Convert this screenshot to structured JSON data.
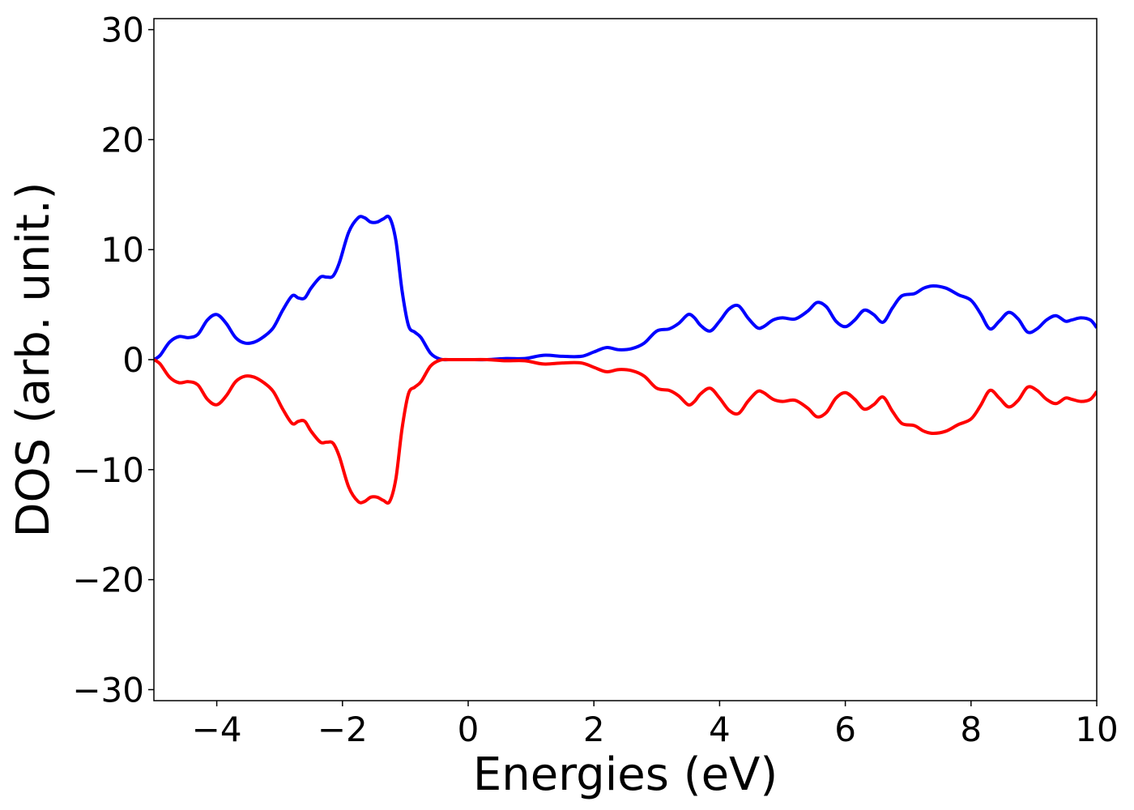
{
  "chart_data": {
    "type": "line",
    "xlabel": "Energies (eV)",
    "ylabel": "DOS (arb. unit.)",
    "xlim": [
      -5,
      10
    ],
    "ylim": [
      -31,
      31
    ],
    "x_ticks": [
      -4,
      -2,
      0,
      2,
      4,
      6,
      8,
      10
    ],
    "y_ticks": [
      -30,
      -20,
      -10,
      0,
      10,
      20,
      30
    ],
    "x_tick_labels": [
      "−4",
      "−2",
      "0",
      "2",
      "4",
      "6",
      "8",
      "10"
    ],
    "y_tick_labels": [
      "−30",
      "−20",
      "−10",
      "0",
      "10",
      "20",
      "30"
    ],
    "grid": false,
    "legend": "none",
    "series": [
      {
        "color": "#0000ff",
        "x": [
          -5.0,
          -4.9,
          -4.75,
          -4.6,
          -4.45,
          -4.3,
          -4.15,
          -4.0,
          -3.85,
          -3.7,
          -3.55,
          -3.4,
          -3.25,
          -3.1,
          -2.95,
          -2.8,
          -2.7,
          -2.6,
          -2.5,
          -2.35,
          -2.25,
          -2.15,
          -2.05,
          -1.9,
          -1.75,
          -1.65,
          -1.55,
          -1.45,
          -1.35,
          -1.25,
          -1.15,
          -1.05,
          -0.95,
          -0.85,
          -0.75,
          -0.6,
          -0.45,
          -0.3,
          0.0,
          0.3,
          0.6,
          0.9,
          1.2,
          1.5,
          1.8,
          2.0,
          2.2,
          2.4,
          2.6,
          2.8,
          3.0,
          3.2,
          3.35,
          3.5,
          3.6,
          3.7,
          3.85,
          4.0,
          4.15,
          4.3,
          4.45,
          4.6,
          4.7,
          4.85,
          5.0,
          5.2,
          5.4,
          5.55,
          5.7,
          5.85,
          6.0,
          6.15,
          6.3,
          6.45,
          6.6,
          6.75,
          6.9,
          7.1,
          7.25,
          7.4,
          7.6,
          7.8,
          8.0,
          8.15,
          8.3,
          8.45,
          8.6,
          8.75,
          8.9,
          9.05,
          9.2,
          9.35,
          9.5,
          9.6,
          9.75,
          9.9,
          10.0
        ],
        "values": [
          0.0,
          0.4,
          1.6,
          2.1,
          2.0,
          2.3,
          3.6,
          4.1,
          3.3,
          2.0,
          1.5,
          1.6,
          2.1,
          2.9,
          4.5,
          5.8,
          5.6,
          5.6,
          6.5,
          7.5,
          7.5,
          7.6,
          8.8,
          11.6,
          12.9,
          12.9,
          12.5,
          12.5,
          12.8,
          12.9,
          10.8,
          6.2,
          3.1,
          2.5,
          2.0,
          0.6,
          0.05,
          0.0,
          0.0,
          0.0,
          0.1,
          0.1,
          0.4,
          0.3,
          0.3,
          0.7,
          1.1,
          0.9,
          1.0,
          1.5,
          2.6,
          2.8,
          3.3,
          4.1,
          3.8,
          3.1,
          2.6,
          3.5,
          4.6,
          4.9,
          3.8,
          2.9,
          3.0,
          3.6,
          3.8,
          3.7,
          4.4,
          5.2,
          4.8,
          3.5,
          3.0,
          3.6,
          4.5,
          4.1,
          3.4,
          4.7,
          5.8,
          6.0,
          6.5,
          6.7,
          6.5,
          5.9,
          5.4,
          4.2,
          2.8,
          3.5,
          4.3,
          3.7,
          2.5,
          2.8,
          3.6,
          4.0,
          3.5,
          3.6,
          3.8,
          3.6,
          2.9
        ]
      },
      {
        "color": "#ff0000",
        "x": [
          -5.0,
          -4.9,
          -4.75,
          -4.6,
          -4.45,
          -4.3,
          -4.15,
          -4.0,
          -3.85,
          -3.7,
          -3.55,
          -3.4,
          -3.25,
          -3.1,
          -2.95,
          -2.8,
          -2.7,
          -2.6,
          -2.5,
          -2.35,
          -2.25,
          -2.15,
          -2.05,
          -1.9,
          -1.75,
          -1.65,
          -1.55,
          -1.45,
          -1.35,
          -1.25,
          -1.15,
          -1.05,
          -0.95,
          -0.85,
          -0.75,
          -0.6,
          -0.45,
          -0.3,
          0.0,
          0.3,
          0.6,
          0.9,
          1.2,
          1.5,
          1.8,
          2.0,
          2.2,
          2.4,
          2.6,
          2.8,
          3.0,
          3.2,
          3.35,
          3.5,
          3.6,
          3.7,
          3.85,
          4.0,
          4.15,
          4.3,
          4.45,
          4.6,
          4.7,
          4.85,
          5.0,
          5.2,
          5.4,
          5.55,
          5.7,
          5.85,
          6.0,
          6.15,
          6.3,
          6.45,
          6.6,
          6.75,
          6.9,
          7.1,
          7.25,
          7.4,
          7.6,
          7.8,
          8.0,
          8.15,
          8.3,
          8.45,
          8.6,
          8.75,
          8.9,
          9.05,
          9.2,
          9.35,
          9.5,
          9.6,
          9.75,
          9.9,
          10.0
        ],
        "values": [
          0.0,
          -0.4,
          -1.6,
          -2.1,
          -2.0,
          -2.3,
          -3.6,
          -4.1,
          -3.3,
          -2.0,
          -1.5,
          -1.6,
          -2.1,
          -2.9,
          -4.5,
          -5.8,
          -5.6,
          -5.6,
          -6.5,
          -7.5,
          -7.5,
          -7.6,
          -8.8,
          -11.6,
          -12.9,
          -12.9,
          -12.5,
          -12.5,
          -12.8,
          -12.9,
          -10.8,
          -6.2,
          -3.1,
          -2.5,
          -2.0,
          -0.6,
          -0.05,
          0.0,
          0.0,
          0.0,
          -0.1,
          -0.1,
          -0.4,
          -0.3,
          -0.3,
          -0.7,
          -1.1,
          -0.9,
          -1.0,
          -1.5,
          -2.6,
          -2.8,
          -3.3,
          -4.1,
          -3.8,
          -3.1,
          -2.6,
          -3.5,
          -4.6,
          -4.9,
          -3.8,
          -2.9,
          -3.0,
          -3.6,
          -3.8,
          -3.7,
          -4.4,
          -5.2,
          -4.8,
          -3.5,
          -3.0,
          -3.6,
          -4.5,
          -4.1,
          -3.4,
          -4.7,
          -5.8,
          -6.0,
          -6.5,
          -6.7,
          -6.5,
          -5.9,
          -5.4,
          -4.2,
          -2.8,
          -3.5,
          -4.3,
          -3.7,
          -2.5,
          -2.8,
          -3.6,
          -4.0,
          -3.5,
          -3.6,
          -3.8,
          -3.6,
          -2.9
        ]
      }
    ]
  }
}
